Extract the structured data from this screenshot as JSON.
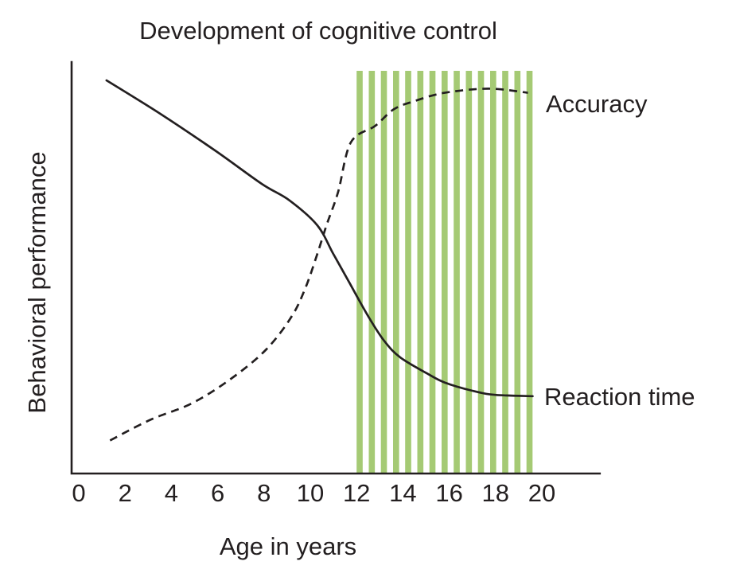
{
  "title": "Development of cognitive control",
  "axes": {
    "x_label": "Age in years",
    "y_label": "Behavioral performance"
  },
  "series_labels": {
    "accuracy": "Accuracy",
    "reaction_time": "Reaction time"
  },
  "colors": {
    "line": "#231f20",
    "text": "#231f20",
    "band_stripe": "#a5ca74",
    "background": "#ffffff"
  },
  "chart_data": {
    "type": "line",
    "title": "Development of cognitive control",
    "xlabel": "Age in years",
    "ylabel": "Behavioral performance",
    "x_ticks": [
      0,
      2,
      4,
      6,
      8,
      10,
      12,
      14,
      16,
      18,
      20
    ],
    "xlim": [
      0,
      22.5
    ],
    "ylim": [
      0,
      1
    ],
    "y_units": "qualitative (no tick labels)",
    "grid": false,
    "legend_position": "right-of-curves",
    "highlight_band": {
      "x_start": 12,
      "x_end": 19.6,
      "y_top": 0.973,
      "y_bottom": 0,
      "style": "vertical stripes",
      "stripe_count": 15,
      "color": "#a5ca74"
    },
    "series": [
      {
        "name": "Accuracy",
        "line_style": "dashed",
        "color": "#231f20",
        "points": [
          [
            1.35,
            0.08
          ],
          [
            3.1,
            0.13
          ],
          [
            4.9,
            0.17
          ],
          [
            6.6,
            0.23
          ],
          [
            8.1,
            0.3
          ],
          [
            9.2,
            0.38
          ],
          [
            9.8,
            0.45
          ],
          [
            10.3,
            0.53
          ],
          [
            10.7,
            0.6
          ],
          [
            11.2,
            0.68
          ],
          [
            11.75,
            0.8
          ],
          [
            12.8,
            0.84
          ],
          [
            13.6,
            0.88
          ],
          [
            14.5,
            0.9
          ],
          [
            15.8,
            0.92
          ],
          [
            17.7,
            0.93
          ],
          [
            19.4,
            0.92
          ]
        ]
      },
      {
        "name": "Reaction time",
        "line_style": "solid",
        "color": "#231f20",
        "points": [
          [
            1.2,
            0.95
          ],
          [
            3.5,
            0.87
          ],
          [
            5.9,
            0.78
          ],
          [
            7.9,
            0.7
          ],
          [
            9.1,
            0.66
          ],
          [
            10.3,
            0.6
          ],
          [
            11.0,
            0.53
          ],
          [
            11.7,
            0.46
          ],
          [
            12.5,
            0.38
          ],
          [
            13.2,
            0.32
          ],
          [
            13.9,
            0.28
          ],
          [
            15.1,
            0.24
          ],
          [
            15.8,
            0.22
          ],
          [
            17.0,
            0.2
          ],
          [
            18.0,
            0.19
          ],
          [
            19.6,
            0.187
          ]
        ]
      }
    ]
  }
}
